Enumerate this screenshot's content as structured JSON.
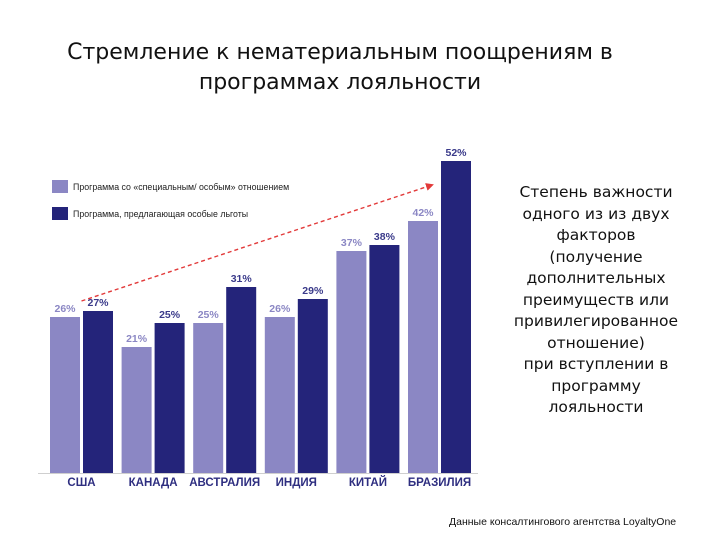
{
  "title": "Стремление к нематериальным поощрениям в\nпрограммах лояльности",
  "side_note": "Степень важности\nодного из из двух\nфакторов\n(получение\nдополнительных\nпреимуществ или\nпривилегированное\nотношение)\nпри вступлении в\nпрограмму\nлояльности",
  "source": "Данные консалтингового агентства LoyaltyOne",
  "colors": {
    "series_1": "#8b87c4",
    "series_2": "#24247a",
    "label_1": "#8b87c4",
    "label_2": "#3a3a8a",
    "category": "#2e2e80",
    "trend": "#e23a3a",
    "axis": "#cfcfcf"
  },
  "chart_data": {
    "type": "bar",
    "title": "",
    "xlabel": "",
    "ylabel": "",
    "ylim": [
      0,
      60
    ],
    "categories": [
      "США",
      "КАНАДА",
      "АВСТРАЛИЯ",
      "ИНДИЯ",
      "КИТАЙ",
      "БРАЗИЛИЯ"
    ],
    "series": [
      {
        "name": "Программа со «специальным/ особым» отношением",
        "values": [
          26,
          21,
          25,
          26,
          37,
          42
        ],
        "labels": [
          "26%",
          "21%",
          "25%",
          "26%",
          "37%",
          "42%"
        ]
      },
      {
        "name": "Программа, предлагающая особые льготы",
        "values": [
          27,
          25,
          31,
          29,
          38,
          52
        ],
        "labels": [
          "27%",
          "25%",
          "31%",
          "29%",
          "38%",
          "52%"
        ]
      }
    ],
    "legend_position": "top-left",
    "grid": false,
    "trend_arrow": true
  }
}
